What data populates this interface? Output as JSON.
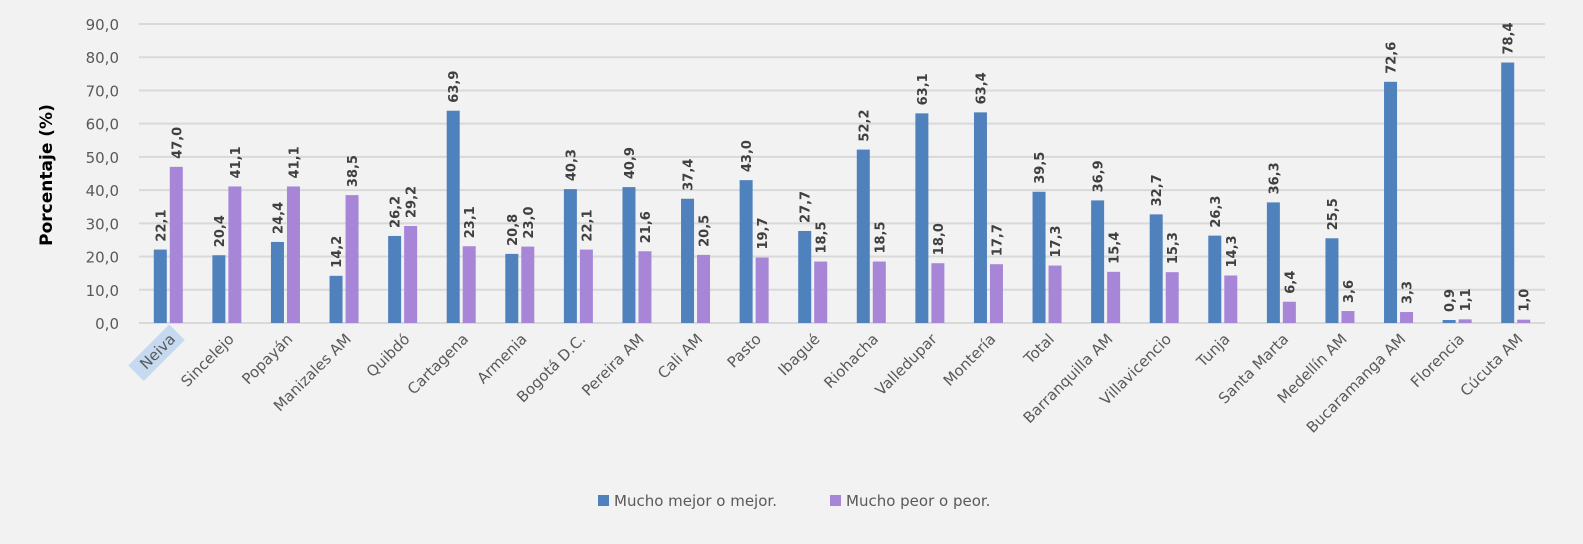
{
  "chart_data": {
    "type": "bar",
    "title": "",
    "xlabel": "",
    "ylabel": "Porcentaje (%)",
    "ylim": [
      0,
      90
    ],
    "yticks": [
      "0,0",
      "10,0",
      "20,0",
      "30,0",
      "40,0",
      "50,0",
      "60,0",
      "70,0",
      "80,0",
      "90,0"
    ],
    "grid": true,
    "legend_position": "bottom",
    "highlighted_category": "Neiva",
    "highlight_color": "#c5d9f1",
    "categories": [
      "Neiva",
      "Sincelejo",
      "Popayán",
      "Manizales AM",
      "Quibdó",
      "Cartagena",
      "Armenia",
      "Bogotá D.C.",
      "Pereira AM",
      "Cali AM",
      "Pasto",
      "Ibagué",
      "Riohacha",
      "Valledupar",
      "Montería",
      "Total",
      "Barranquilla AM",
      "Villavicencio",
      "Tunja",
      "Santa Marta",
      "Medellín AM",
      "Bucaramanga AM",
      "Florencia",
      "Cúcuta AM"
    ],
    "series": [
      {
        "name": "Mucho mejor o mejor.",
        "color": "#4f81bd",
        "values": [
          22.1,
          20.4,
          24.4,
          14.2,
          26.2,
          63.9,
          20.8,
          40.3,
          40.9,
          37.4,
          43.0,
          27.7,
          52.2,
          63.1,
          63.4,
          39.5,
          36.9,
          32.7,
          26.3,
          36.3,
          25.5,
          72.6,
          0.9,
          78.4
        ],
        "labels": [
          "22,1",
          "20,4",
          "24,4",
          "14,2",
          "26,2",
          "63,9",
          "20,8",
          "40,3",
          "40,9",
          "37,4",
          "43,0",
          "27,7",
          "52,2",
          "63,1",
          "63,4",
          "39,5",
          "36,9",
          "32,7",
          "26,3",
          "36,3",
          "25,5",
          "72,6",
          "0,9",
          "78,4"
        ]
      },
      {
        "name": "Mucho peor o peor.",
        "color": "#a786d8",
        "values": [
          47.0,
          41.1,
          41.1,
          38.5,
          29.2,
          23.1,
          23.0,
          22.1,
          21.6,
          20.5,
          19.7,
          18.5,
          18.5,
          18.0,
          17.7,
          17.3,
          15.4,
          15.3,
          14.3,
          6.4,
          3.6,
          3.3,
          1.1,
          1.0
        ],
        "labels": [
          "47,0",
          "41,1",
          "41,1",
          "38,5",
          "29,2",
          "23,1",
          "23,0",
          "22,1",
          "21,6",
          "20,5",
          "19,7",
          "18,5",
          "18,5",
          "18,0",
          "17,7",
          "17,3",
          "15,4",
          "15,3",
          "14,3",
          "6,4",
          "3,6",
          "3,3",
          "1,1",
          "1,0"
        ]
      }
    ]
  }
}
